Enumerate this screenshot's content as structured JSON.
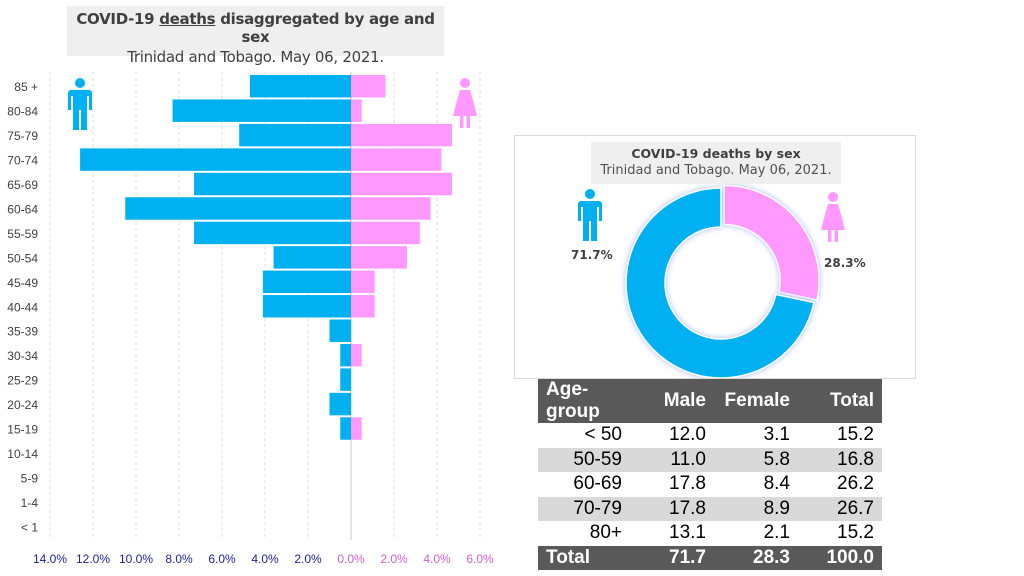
{
  "pyramid": {
    "title_pre": "COVID-19 ",
    "title_underlined": "deaths",
    "title_post": " disaggregated by age and sex",
    "subtitle": "Trinidad and Tobago. May 06, 2021.",
    "chart_data": {
      "type": "bar",
      "orientation": "horizontal-population-pyramid",
      "categories": [
        "85 +",
        "80-84",
        "75-79",
        "70-74",
        "65-69",
        "60-64",
        "55-59",
        "50-54",
        "45-49",
        "40-44",
        "35-39",
        "30-34",
        "25-29",
        "20-24",
        "15-19",
        "10-14",
        "5-9",
        "1-4",
        "< 1"
      ],
      "series": [
        {
          "sex": "male",
          "color": "#00b0f0",
          "values": [
            4.7,
            8.3,
            5.2,
            12.6,
            7.3,
            10.5,
            7.3,
            3.6,
            4.1,
            4.1,
            1.0,
            0.5,
            0.5,
            1.0,
            0.5,
            0,
            0,
            0,
            0
          ]
        },
        {
          "sex": "female",
          "color": "#ff99ff",
          "values": [
            1.6,
            0.5,
            4.7,
            4.2,
            4.7,
            3.7,
            3.2,
            2.6,
            1.1,
            1.1,
            0,
            0.5,
            0,
            0,
            0.5,
            0,
            0,
            0,
            0
          ]
        }
      ],
      "xlim_male": [
        0,
        14
      ],
      "xlim_female": [
        0,
        6
      ],
      "x_ticks_male": [
        "14.0%",
        "12.0%",
        "10.0%",
        "8.0%",
        "6.0%",
        "4.0%",
        "2.0%"
      ],
      "x_ticks_female": [
        "0.0%",
        "2.0%",
        "4.0%",
        "6.0%"
      ],
      "male_tick_color": "#1f1f99",
      "female_tick_color": "#d060d0",
      "grid": "vertical dashed",
      "icons": [
        "male-icon",
        "female-icon"
      ]
    }
  },
  "donut": {
    "title": "COVID-19 deaths by sex",
    "subtitle": "Trinidad and Tobago. May 06, 2021.",
    "chart_data": {
      "type": "pie",
      "variant": "donut",
      "slices": [
        {
          "sex": "female",
          "value": 28.3,
          "label": "28.3%",
          "color": "#ff99ff"
        },
        {
          "sex": "male",
          "value": 71.7,
          "label": "71.7%",
          "color": "#00b0f0"
        }
      ]
    }
  },
  "table": {
    "headers": [
      "Age-group",
      "Male",
      "Female",
      "Total"
    ],
    "rows": [
      [
        "< 50",
        "12.0",
        "3.1",
        "15.2"
      ],
      [
        "50-59",
        "11.0",
        "5.8",
        "16.8"
      ],
      [
        "60-69",
        "17.8",
        "8.4",
        "26.2"
      ],
      [
        "70-79",
        "17.8",
        "8.9",
        "26.7"
      ],
      [
        "80+",
        "13.1",
        "2.1",
        "15.2"
      ]
    ],
    "total": [
      "Total",
      "71.7",
      "28.3",
      "100.0"
    ]
  }
}
